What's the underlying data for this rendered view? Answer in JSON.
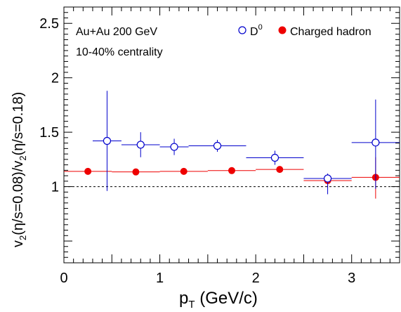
{
  "chart_data": {
    "type": "scatter",
    "title": "",
    "xlabel": {
      "main": "p",
      "sub": "T",
      "unit": " (GeV/c)"
    },
    "ylabel": {
      "p1": "v",
      "s1": "2",
      "p2": "(η/s=0.08)/v",
      "s2": "2",
      "p3": "(η/s=0.18)"
    },
    "xlim": [
      0,
      3.5
    ],
    "ylim": [
      0.3,
      2.65
    ],
    "xticks": [
      0,
      1,
      2,
      3
    ],
    "yticks": [
      1,
      1.5,
      2,
      2.5
    ],
    "ytick_labels": [
      "1",
      "1.5",
      "2",
      "2.5"
    ],
    "reference_line": 1.0,
    "annotations": [
      "Au+Au 200 GeV",
      "10-40% centrality"
    ],
    "legend_position": "top-right",
    "series": [
      {
        "name": "D",
        "name_sup": "0",
        "marker": "open-circle",
        "color": "#0000cc",
        "points": [
          {
            "x": 0.45,
            "y": 1.42,
            "xlo": 0.3,
            "xhi": 0.6,
            "ylo": 0.96,
            "yhi": 1.88
          },
          {
            "x": 0.8,
            "y": 1.385,
            "xlo": 0.6,
            "xhi": 1.0,
            "ylo": 1.27,
            "yhi": 1.5
          },
          {
            "x": 1.15,
            "y": 1.365,
            "xlo": 1.0,
            "xhi": 1.3,
            "ylo": 1.29,
            "yhi": 1.44
          },
          {
            "x": 1.6,
            "y": 1.375,
            "xlo": 1.3,
            "xhi": 1.9,
            "ylo": 1.32,
            "yhi": 1.43
          },
          {
            "x": 2.2,
            "y": 1.265,
            "xlo": 1.9,
            "xhi": 2.5,
            "ylo": 1.2,
            "yhi": 1.33
          },
          {
            "x": 2.75,
            "y": 1.075,
            "xlo": 2.5,
            "xhi": 3.0,
            "ylo": 0.93,
            "yhi": 1.12
          },
          {
            "x": 3.25,
            "y": 1.405,
            "xlo": 3.0,
            "xhi": 3.5,
            "ylo": 0.98,
            "yhi": 1.8
          }
        ]
      },
      {
        "name": "Charged hadron",
        "marker": "filled-circle",
        "color": "#ee0000",
        "points": [
          {
            "x": 0.25,
            "y": 1.14,
            "xlo": 0.0,
            "xhi": 0.5,
            "ylo": 1.13,
            "yhi": 1.15
          },
          {
            "x": 0.75,
            "y": 1.135,
            "xlo": 0.5,
            "xhi": 1.0,
            "ylo": 1.125,
            "yhi": 1.145
          },
          {
            "x": 1.25,
            "y": 1.14,
            "xlo": 1.0,
            "xhi": 1.5,
            "ylo": 1.13,
            "yhi": 1.15
          },
          {
            "x": 1.75,
            "y": 1.147,
            "xlo": 1.5,
            "xhi": 2.0,
            "ylo": 1.137,
            "yhi": 1.157
          },
          {
            "x": 2.25,
            "y": 1.158,
            "xlo": 2.0,
            "xhi": 2.5,
            "ylo": 1.148,
            "yhi": 1.168
          },
          {
            "x": 2.75,
            "y": 1.055,
            "xlo": 2.5,
            "xhi": 3.0,
            "ylo": 0.99,
            "yhi": 1.12
          },
          {
            "x": 3.25,
            "y": 1.085,
            "xlo": 3.0,
            "xhi": 3.5,
            "ylo": 0.89,
            "yhi": 1.27
          }
        ]
      }
    ]
  }
}
